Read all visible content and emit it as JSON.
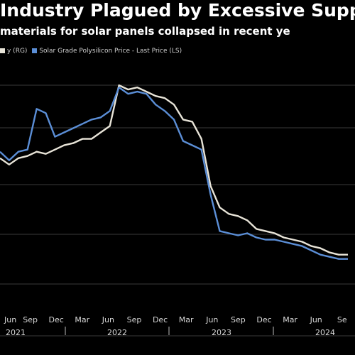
{
  "chart_data": {
    "type": "line",
    "title": "Industry Plagued by Excessive Supp",
    "subtitle": "materials for solar panels collapsed in recent ye",
    "x": [
      "2021-06",
      "2021-07",
      "2021-08",
      "2021-09",
      "2021-10",
      "2021-11",
      "2021-12",
      "2022-01",
      "2022-02",
      "2022-03",
      "2022-04",
      "2022-05",
      "2022-06",
      "2022-07",
      "2022-08",
      "2022-09",
      "2022-10",
      "2022-11",
      "2022-12",
      "2023-01",
      "2023-02",
      "2023-03",
      "2023-04",
      "2023-05",
      "2023-06",
      "2023-07",
      "2023-08",
      "2023-09",
      "2023-10",
      "2023-11",
      "2023-12",
      "2024-01",
      "2024-02",
      "2024-03",
      "2024-04",
      "2024-05",
      "2024-06",
      "2024-07",
      "2024-08"
    ],
    "series": [
      {
        "name": "y (RG)",
        "color": "#e8e4d8",
        "values": [
          0.62,
          0.59,
          0.62,
          0.63,
          0.65,
          0.64,
          0.66,
          0.68,
          0.69,
          0.71,
          0.71,
          0.74,
          0.77,
          0.96,
          0.94,
          0.95,
          0.93,
          0.91,
          0.9,
          0.87,
          0.8,
          0.79,
          0.71,
          0.49,
          0.39,
          0.36,
          0.35,
          0.33,
          0.29,
          0.28,
          0.27,
          0.25,
          0.24,
          0.23,
          0.21,
          0.2,
          0.18,
          0.17,
          0.17
        ]
      },
      {
        "name": "Solar Grade Polysilicon Price - Last Price (LS)",
        "color": "#5b8ed6",
        "values": [
          0.65,
          0.61,
          0.65,
          0.66,
          0.85,
          0.83,
          0.72,
          0.74,
          0.76,
          0.78,
          0.8,
          0.81,
          0.84,
          0.95,
          0.92,
          0.93,
          0.92,
          0.87,
          0.84,
          0.8,
          0.7,
          0.68,
          0.66,
          0.45,
          0.28,
          0.27,
          0.26,
          0.27,
          0.25,
          0.24,
          0.24,
          0.23,
          0.22,
          0.21,
          0.19,
          0.17,
          0.16,
          0.15,
          0.15
        ]
      }
    ],
    "x_tick_labels": [
      "Jun",
      "Sep",
      "Dec",
      "Mar",
      "Jun",
      "Sep",
      "Dec",
      "Mar",
      "Jun",
      "Sep",
      "Dec",
      "Mar",
      "Jun",
      "Se"
    ],
    "year_labels": [
      "2021",
      "2022",
      "2023",
      "2024"
    ],
    "grid": true
  }
}
